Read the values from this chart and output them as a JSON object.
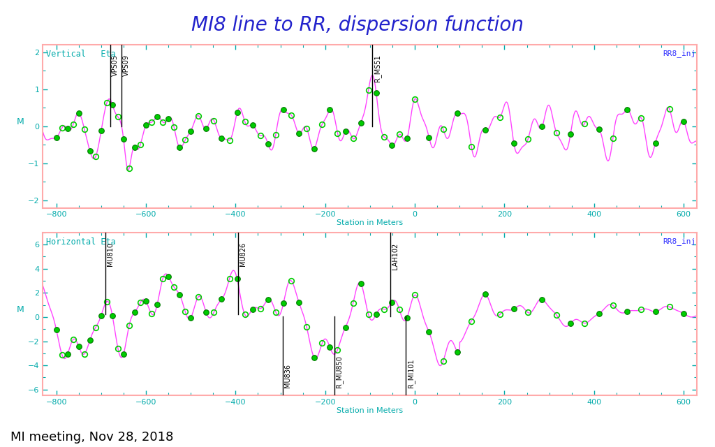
{
  "title": "MI8 line to RR, dispersion function",
  "title_color": "#2222cc",
  "title_fontsize": 20,
  "footer_text": "MI meeting, Nov 28, 2018",
  "footer_fontsize": 13,
  "background_color": "#ffffff",
  "plot_bg_color": "#ffffff",
  "border_color": "#ffaaaa",
  "line_color": "#ff44ff",
  "dot_fill_color": "#00cc00",
  "dot_edge_color": "#007700",
  "label_color": "#00aaaa",
  "rr_label_color": "#3333ff",
  "top_panel": {
    "ylabel": "M",
    "xlabel": "Station in Meters",
    "label_top_left": "Vertical   Eta",
    "label_top_right": "RR8_inj",
    "ylim": [
      -2.2,
      2.2
    ],
    "xlim": [
      -830,
      630
    ],
    "xticks": [
      -800,
      -600,
      -400,
      -200,
      0,
      200,
      400,
      600
    ],
    "yticks": [
      -2,
      -1,
      0,
      1,
      2
    ],
    "annot_top": [
      {
        "text": "VPS05",
        "x": -680
      },
      {
        "text": "VPS09",
        "x": -655
      }
    ],
    "annot_mid": [
      {
        "text": "R_MS51",
        "x": -95
      }
    ]
  },
  "bottom_panel": {
    "ylabel": "M",
    "xlabel": "Station in Meters",
    "label_top_left": "Horizontal Eta",
    "label_top_right": "RR8_inj",
    "ylim": [
      -6.5,
      7.0
    ],
    "xlim": [
      -830,
      630
    ],
    "xticks": [
      -800,
      -600,
      -400,
      -200,
      0,
      200,
      400,
      600
    ],
    "yticks": [
      -6,
      -4,
      -2,
      0,
      2,
      4,
      6
    ],
    "annot_top": [
      {
        "text": "MU810",
        "x": -690
      },
      {
        "text": "MU826",
        "x": -395
      }
    ],
    "annot_bottom": [
      {
        "text": "MU836",
        "x": -295
      },
      {
        "text": "R_MU850",
        "x": -180
      },
      {
        "text": "R_MI101",
        "x": -20
      }
    ],
    "annot_mid": [
      {
        "text": "LAH102",
        "x": -55
      }
    ]
  }
}
